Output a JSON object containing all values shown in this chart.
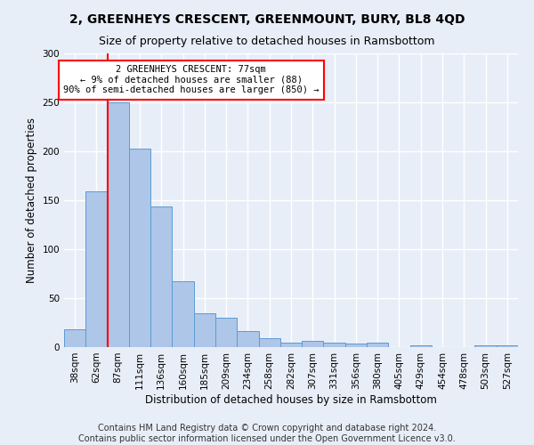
{
  "title": "2, GREENHEYS CRESCENT, GREENMOUNT, BURY, BL8 4QD",
  "subtitle": "Size of property relative to detached houses in Ramsbottom",
  "xlabel": "Distribution of detached houses by size in Ramsbottom",
  "ylabel": "Number of detached properties",
  "footer_line1": "Contains HM Land Registry data © Crown copyright and database right 2024.",
  "footer_line2": "Contains public sector information licensed under the Open Government Licence v3.0.",
  "categories": [
    "38sqm",
    "62sqm",
    "87sqm",
    "111sqm",
    "136sqm",
    "160sqm",
    "185sqm",
    "209sqm",
    "234sqm",
    "258sqm",
    "282sqm",
    "307sqm",
    "331sqm",
    "356sqm",
    "380sqm",
    "405sqm",
    "429sqm",
    "454sqm",
    "478sqm",
    "503sqm",
    "527sqm"
  ],
  "values": [
    18,
    159,
    250,
    203,
    144,
    67,
    35,
    30,
    16,
    9,
    5,
    6,
    5,
    4,
    5,
    0,
    2,
    0,
    0,
    2,
    2
  ],
  "bar_color": "#aec6e8",
  "bar_edge_color": "#5b9bd5",
  "annotation_text_line1": "2 GREENHEYS CRESCENT: 77sqm",
  "annotation_text_line2": "← 9% of detached houses are smaller (88)",
  "annotation_text_line3": "90% of semi-detached houses are larger (850) →",
  "annotation_box_color": "white",
  "annotation_box_edge_color": "red",
  "vline_color": "red",
  "ylim": [
    0,
    300
  ],
  "yticks": [
    0,
    50,
    100,
    150,
    200,
    250,
    300
  ],
  "background_color": "#e8eef8",
  "grid_color": "white",
  "title_fontsize": 10,
  "subtitle_fontsize": 9,
  "axis_label_fontsize": 8.5,
  "tick_fontsize": 7.5,
  "footer_fontsize": 7
}
